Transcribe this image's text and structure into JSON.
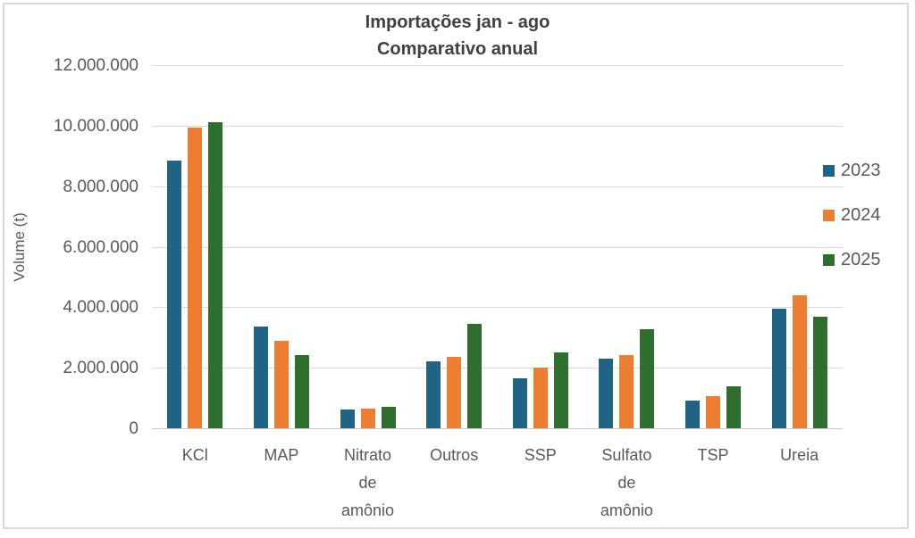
{
  "title": "Importações jan - ago",
  "subtitle": "Comparativo anual",
  "colors": {
    "series_2023": "#1F6484",
    "series_2024": "#ED7D31",
    "series_2025": "#2E6F2E",
    "title_text": "#404040",
    "axis_text": "#595959",
    "gridline": "#D9D9D9",
    "chart_border": "#D9D9D9"
  },
  "chart_data": {
    "type": "bar",
    "title": "Importações jan - ago",
    "subtitle": "Comparativo anual",
    "xlabel": "",
    "ylabel": "Volume (t)",
    "ylim": [
      0,
      12000000
    ],
    "ytick_interval": 2000000,
    "ytick_labels": [
      "0",
      "2.000.000",
      "4.000.000",
      "6.000.000",
      "8.000.000",
      "10.000.000",
      "12.000.000"
    ],
    "grid": true,
    "legend_position": "right",
    "categories": [
      "KCl",
      "MAP",
      "Nitrato de amônio",
      "Outros",
      "SSP",
      "Sulfato de amônio",
      "TSP",
      "Ureia"
    ],
    "series": [
      {
        "name": "2023",
        "color": "#1F6484",
        "values": [
          8850000,
          3350000,
          620000,
          2200000,
          1650000,
          2300000,
          920000,
          3950000
        ]
      },
      {
        "name": "2024",
        "color": "#ED7D31",
        "values": [
          9950000,
          2900000,
          650000,
          2370000,
          2000000,
          2420000,
          1050000,
          4400000
        ]
      },
      {
        "name": "2025",
        "color": "#2E6F2E",
        "values": [
          10100000,
          2420000,
          700000,
          3450000,
          2500000,
          3270000,
          1400000,
          3700000
        ]
      }
    ]
  }
}
